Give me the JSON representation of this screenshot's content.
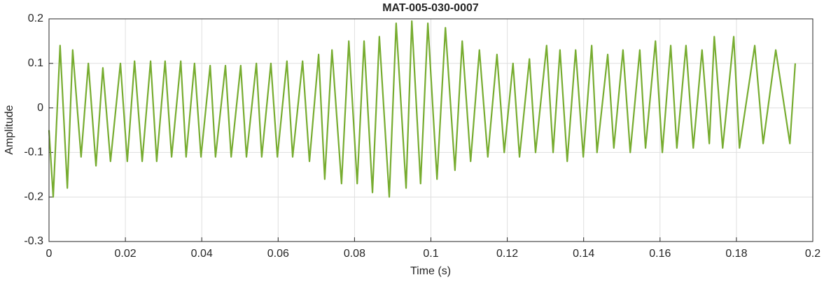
{
  "chart_data": {
    "type": "line",
    "title": "MAT-005-030-0007",
    "x_label": "Time (s)",
    "y_label": "Amplitude",
    "x": [
      0,
      0.0011,
      0.0029,
      0.0048,
      0.0062,
      0.0084,
      0.0103,
      0.0123,
      0.0141,
      0.0161,
      0.0187,
      0.0205,
      0.0224,
      0.0244,
      0.0266,
      0.0282,
      0.0304,
      0.0321,
      0.0345,
      0.0359,
      0.0381,
      0.0398,
      0.0422,
      0.0436,
      0.0462,
      0.0477,
      0.0502,
      0.0517,
      0.0543,
      0.0557,
      0.0581,
      0.0598,
      0.0623,
      0.0638,
      0.0664,
      0.0682,
      0.0706,
      0.0722,
      0.0741,
      0.0766,
      0.0785,
      0.0807,
      0.0825,
      0.0847,
      0.0865,
      0.0891,
      0.0909,
      0.0935,
      0.095,
      0.0973,
      0.0992,
      0.1016,
      0.1038,
      0.1063,
      0.1082,
      0.1104,
      0.1127,
      0.1149,
      0.1173,
      0.1192,
      0.1215,
      0.1232,
      0.1258,
      0.1274,
      0.1303,
      0.132,
      0.1338,
      0.1357,
      0.1379,
      0.1399,
      0.1421,
      0.1435,
      0.1463,
      0.1479,
      0.1503,
      0.1522,
      0.1547,
      0.1562,
      0.1588,
      0.1606,
      0.1628,
      0.1644,
      0.1668,
      0.1687,
      0.171,
      0.1729,
      0.1742,
      0.1764,
      0.1793,
      0.1808,
      0.1848,
      0.187,
      0.1903,
      0.194,
      0.1954
    ],
    "series": [
      {
        "color": "#77ac30",
        "values": [
          -0.05,
          -0.2,
          0.14,
          -0.18,
          0.13,
          -0.11,
          0.1,
          -0.13,
          0.09,
          -0.12,
          0.1,
          -0.12,
          0.105,
          -0.12,
          0.105,
          -0.12,
          0.105,
          -0.11,
          0.105,
          -0.11,
          0.1,
          -0.11,
          0.095,
          -0.11,
          0.095,
          -0.11,
          0.095,
          -0.11,
          0.1,
          -0.11,
          0.1,
          -0.11,
          0.105,
          -0.11,
          0.105,
          -0.12,
          0.12,
          -0.16,
          0.13,
          -0.17,
          0.15,
          -0.17,
          0.15,
          -0.19,
          0.16,
          -0.2,
          0.19,
          -0.18,
          0.195,
          -0.17,
          0.19,
          -0.16,
          0.18,
          -0.14,
          0.15,
          -0.12,
          0.13,
          -0.11,
          0.12,
          -0.1,
          0.1,
          -0.11,
          0.11,
          -0.1,
          0.14,
          -0.1,
          0.13,
          -0.12,
          0.13,
          -0.11,
          0.14,
          -0.1,
          0.12,
          -0.09,
          0.13,
          -0.1,
          0.13,
          -0.09,
          0.15,
          -0.1,
          0.14,
          -0.09,
          0.14,
          -0.09,
          0.13,
          -0.08,
          0.16,
          -0.09,
          0.16,
          -0.09,
          0.14,
          -0.08,
          0.13,
          -0.08,
          0.1
        ]
      }
    ],
    "xlim": [
      0,
      0.2
    ],
    "ylim": [
      -0.3,
      0.2
    ],
    "xticks": [
      0,
      0.02,
      0.04,
      0.06,
      0.08,
      0.1,
      0.12,
      0.14,
      0.16,
      0.18,
      0.2
    ],
    "yticks": [
      -0.3,
      -0.2,
      -0.1,
      0,
      0.1,
      0.2
    ],
    "grid": true
  }
}
